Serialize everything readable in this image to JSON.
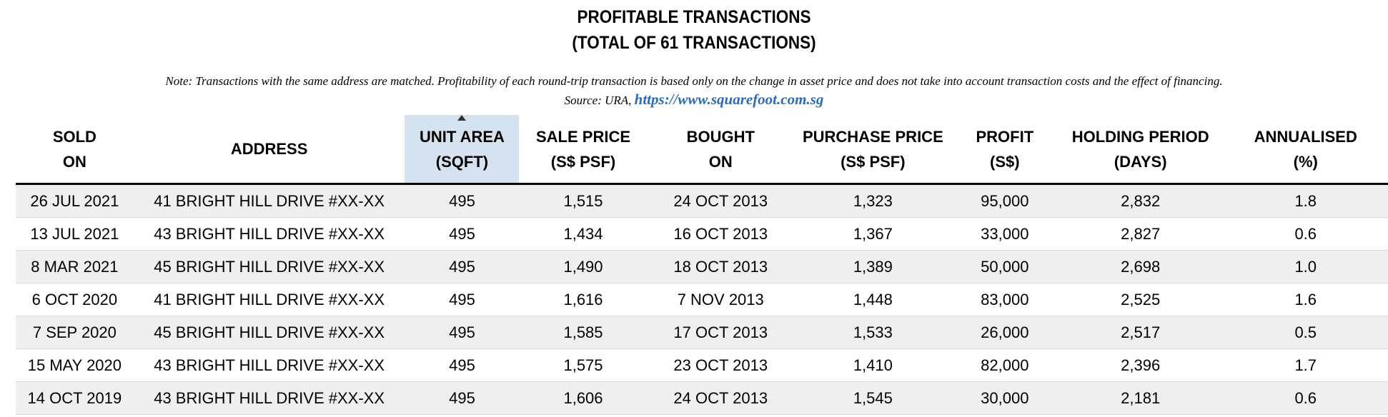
{
  "title": {
    "line1": "PROFITABLE TRANSACTIONS",
    "line2": "(TOTAL OF 61 TRANSACTIONS)"
  },
  "note": "Note: Transactions with the same address are matched. Profitability of each round-trip transaction is based only on the change in asset price and does not take into account transaction costs and the effect of financing.",
  "source": {
    "label": "Source: URA,",
    "link": "https://www.squarefoot.com.sg"
  },
  "columns": [
    {
      "line1": "SOLD",
      "line2": "ON"
    },
    {
      "line1": "ADDRESS",
      "line2": ""
    },
    {
      "line1": "UNIT AREA",
      "line2": "(SQFT)"
    },
    {
      "line1": "SALE PRICE",
      "line2": "(S$ PSF)"
    },
    {
      "line1": "BOUGHT",
      "line2": "ON"
    },
    {
      "line1": "PURCHASE PRICE",
      "line2": "(S$ PSF)"
    },
    {
      "line1": "PROFIT",
      "line2": "(S$)"
    },
    {
      "line1": "HOLDING PERIOD",
      "line2": "(DAYS)"
    },
    {
      "line1": "ANNUALISED",
      "line2": "(%)"
    }
  ],
  "sorted_column": "UNIT AREA",
  "rows": [
    [
      "26 JUL 2021",
      "41 BRIGHT HILL DRIVE #XX-XX",
      "495",
      "1,515",
      "24 OCT 2013",
      "1,323",
      "95,000",
      "2,832",
      "1.8"
    ],
    [
      "13 JUL 2021",
      "43 BRIGHT HILL DRIVE #XX-XX",
      "495",
      "1,434",
      "16 OCT 2013",
      "1,367",
      "33,000",
      "2,827",
      "0.6"
    ],
    [
      "8 MAR 2021",
      "45 BRIGHT HILL DRIVE #XX-XX",
      "495",
      "1,490",
      "18 OCT 2013",
      "1,389",
      "50,000",
      "2,698",
      "1.0"
    ],
    [
      "6 OCT 2020",
      "41 BRIGHT HILL DRIVE #XX-XX",
      "495",
      "1,616",
      "7 NOV 2013",
      "1,448",
      "83,000",
      "2,525",
      "1.6"
    ],
    [
      "7 SEP 2020",
      "45 BRIGHT HILL DRIVE #XX-XX",
      "495",
      "1,585",
      "17 OCT 2013",
      "1,533",
      "26,000",
      "2,517",
      "0.5"
    ],
    [
      "15 MAY 2020",
      "43 BRIGHT HILL DRIVE #XX-XX",
      "495",
      "1,575",
      "23 OCT 2013",
      "1,410",
      "82,000",
      "2,396",
      "1.7"
    ],
    [
      "14 OCT 2019",
      "43 BRIGHT HILL DRIVE #XX-XX",
      "495",
      "1,606",
      "24 OCT 2013",
      "1,545",
      "30,000",
      "2,181",
      "0.6"
    ]
  ],
  "colors": {
    "sorted_header": "#d5e3f0",
    "row_alt": "#efefef",
    "link": "#2a6db5"
  }
}
